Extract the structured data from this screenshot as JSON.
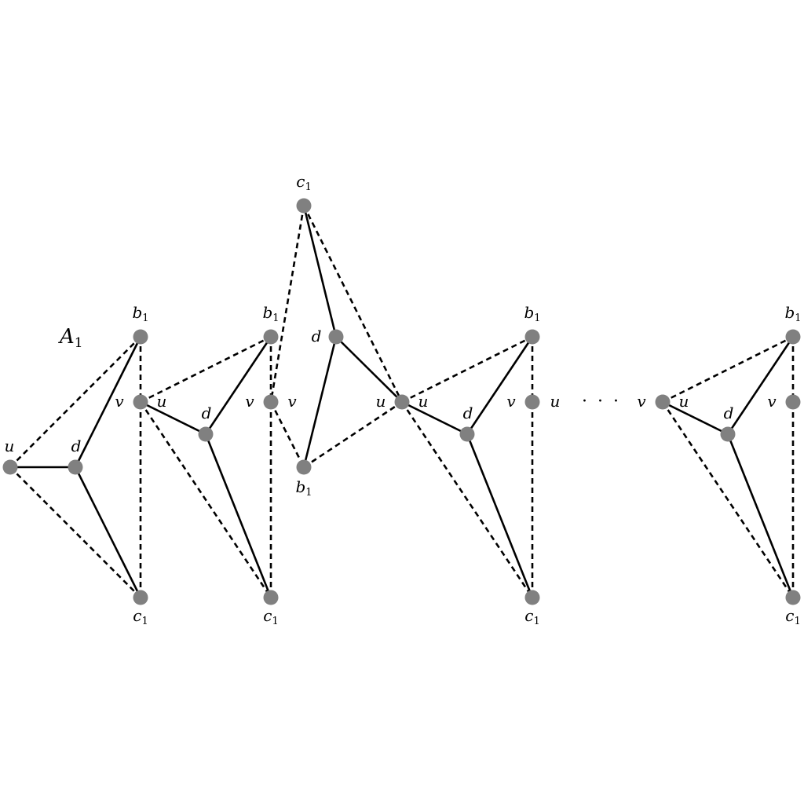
{
  "diagram": {
    "title": "A",
    "title_sub": "1",
    "ellipsis": "· · ·",
    "label_names": [
      "u",
      "v",
      "d",
      "b",
      "c"
    ],
    "nodes": [
      {
        "id": "u0",
        "label": "u"
      },
      {
        "id": "d1",
        "label": "d"
      },
      {
        "id": "b1a",
        "label": "b",
        "sub": "1"
      },
      {
        "id": "v1",
        "label": "v",
        "label2": "u"
      },
      {
        "id": "c1a",
        "label": "c",
        "sub": "1"
      },
      {
        "id": "d2",
        "label": "d"
      },
      {
        "id": "b1b",
        "label": "b",
        "sub": "1"
      },
      {
        "id": "v2",
        "label": "v",
        "label2": "v"
      },
      {
        "id": "c1b",
        "label": "c",
        "sub": "1"
      },
      {
        "id": "c1top",
        "label": "c",
        "sub": "1"
      },
      {
        "id": "dmid",
        "label": "d"
      },
      {
        "id": "b1mid",
        "label": "b",
        "sub": "1"
      },
      {
        "id": "umid",
        "label": "u",
        "label2": "u"
      },
      {
        "id": "d3",
        "label": "d"
      },
      {
        "id": "b1c",
        "label": "b",
        "sub": "1"
      },
      {
        "id": "v3",
        "label": "v",
        "label2": "u"
      },
      {
        "id": "c1c",
        "label": "c",
        "sub": "1"
      },
      {
        "id": "v4",
        "label": "v",
        "label2": "u"
      },
      {
        "id": "d4",
        "label": "d"
      },
      {
        "id": "b1d",
        "label": "b",
        "sub": "1"
      },
      {
        "id": "v5",
        "label": "v"
      },
      {
        "id": "c1d",
        "label": "c",
        "sub": "1"
      }
    ],
    "edges": [
      {
        "from": "u0",
        "to": "d1",
        "style": "solid"
      },
      {
        "from": "u0",
        "to": "b1a",
        "style": "dashed"
      },
      {
        "from": "u0",
        "to": "c1a",
        "style": "dashed"
      },
      {
        "from": "d1",
        "to": "b1a",
        "style": "solid"
      },
      {
        "from": "d1",
        "to": "c1a",
        "style": "solid"
      },
      {
        "from": "b1a",
        "to": "c1a",
        "style": "dashed"
      },
      {
        "from": "v1",
        "to": "d2",
        "style": "solid"
      },
      {
        "from": "v1",
        "to": "b1b",
        "style": "dashed"
      },
      {
        "from": "v1",
        "to": "c1b",
        "style": "dashed"
      },
      {
        "from": "d2",
        "to": "b1b",
        "style": "solid"
      },
      {
        "from": "d2",
        "to": "c1b",
        "style": "solid"
      },
      {
        "from": "b1b",
        "to": "c1b",
        "style": "dashed"
      },
      {
        "from": "c1top",
        "to": "v2",
        "style": "dashed"
      },
      {
        "from": "v2",
        "to": "b1mid",
        "style": "dashed"
      },
      {
        "from": "c1top",
        "to": "dmid",
        "style": "solid"
      },
      {
        "from": "dmid",
        "to": "b1mid",
        "style": "solid"
      },
      {
        "from": "dmid",
        "to": "umid",
        "style": "solid"
      },
      {
        "from": "c1top",
        "to": "umid",
        "style": "dashed"
      },
      {
        "from": "b1mid",
        "to": "umid",
        "style": "dashed"
      },
      {
        "from": "umid",
        "to": "d3",
        "style": "solid"
      },
      {
        "from": "umid",
        "to": "b1c",
        "style": "dashed"
      },
      {
        "from": "umid",
        "to": "c1c",
        "style": "dashed"
      },
      {
        "from": "d3",
        "to": "b1c",
        "style": "solid"
      },
      {
        "from": "d3",
        "to": "c1c",
        "style": "solid"
      },
      {
        "from": "b1c",
        "to": "c1c",
        "style": "dashed"
      },
      {
        "from": "v4",
        "to": "d4",
        "style": "solid"
      },
      {
        "from": "v4",
        "to": "b1d",
        "style": "dashed"
      },
      {
        "from": "v4",
        "to": "c1d",
        "style": "dashed"
      },
      {
        "from": "d4",
        "to": "b1d",
        "style": "solid"
      },
      {
        "from": "d4",
        "to": "c1d",
        "style": "solid"
      },
      {
        "from": "b1d",
        "to": "c1d",
        "style": "dashed"
      }
    ],
    "colors": {
      "node": "#808080",
      "edge": "#000000"
    }
  }
}
